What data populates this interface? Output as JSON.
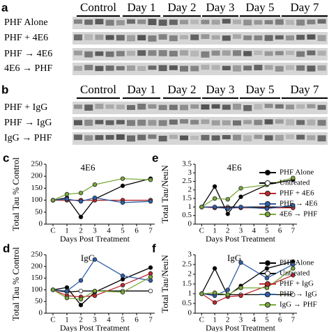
{
  "blots": [
    {
      "label": "a",
      "headers": [
        "Control",
        "Day 1",
        "Day 2",
        "Day 3",
        "Day 5",
        "Day 7"
      ],
      "rows": [
        "PHF Alone",
        "PHF + 4E6",
        "PHF → 4E6",
        "4E6 → PHF"
      ]
    },
    {
      "label": "b",
      "headers": [
        "Control",
        "Day 1",
        "Day 2",
        "Day 3",
        "Day 5",
        "Day 7"
      ],
      "rows": [
        "PHF + IgG",
        "PHF → IgG",
        "IgG → PHF"
      ]
    }
  ],
  "chart_data": [
    {
      "type": "line",
      "label": "c",
      "title": "4E6",
      "y_label": "Total Tau % Control",
      "x_label": "Days Post Treatment",
      "x": [
        0,
        1,
        2,
        3,
        5,
        7
      ],
      "xlim": [
        -0.5,
        7.3
      ],
      "xticks": [
        {
          "value": 0,
          "label": "C"
        },
        1,
        2,
        3,
        4,
        5,
        6,
        7
      ],
      "ylim": [
        0,
        250
      ],
      "yticks": [
        0,
        50,
        100,
        150,
        200,
        250
      ],
      "legend": false,
      "series": [
        {
          "name": "PHF Alone",
          "color": "#000000",
          "line_color": "#000000",
          "values": [
            100,
            110,
            30,
            105,
            160,
            190
          ]
        },
        {
          "name": "Untreated",
          "color": "#ffffff",
          "line_color": "#000000",
          "values": [
            100,
            100,
            100,
            100,
            100,
            100
          ]
        },
        {
          "name": "PHF + 4E6",
          "color": "#c0282d",
          "line_color": "#c0282d",
          "values": [
            100,
            100,
            100,
            100,
            100,
            100
          ]
        },
        {
          "name": "PHF → 4E6",
          "color": "#2e5fa8",
          "line_color": "#2e5fa8",
          "values": [
            100,
            105,
            95,
            110,
            90,
            95
          ]
        },
        {
          "name": "4E6 → PHF",
          "color": "#7aa83a",
          "line_color": "#7aa83a",
          "values": [
            100,
            125,
            130,
            165,
            190,
            185
          ]
        }
      ]
    },
    {
      "type": "line",
      "label": "e",
      "title": "4E6",
      "y_label": "Total Tau/NeuN",
      "x_label": "Days Post Treatment",
      "x": [
        0,
        1,
        2,
        3,
        5,
        7
      ],
      "xlim": [
        -0.5,
        7.3
      ],
      "xticks": [
        {
          "value": 0,
          "label": "C"
        },
        1,
        2,
        3,
        4,
        5,
        6,
        7
      ],
      "ylim": [
        0,
        3.5
      ],
      "yticks": [
        0,
        0.5,
        1,
        1.5,
        2,
        2.5,
        3,
        3.5
      ],
      "legend": true,
      "series": [
        {
          "name": "PHF Alone",
          "color": "#000000",
          "line_color": "#000000",
          "values": [
            1.0,
            2.2,
            0.6,
            1.6,
            2.3,
            2.6
          ]
        },
        {
          "name": "Untreated",
          "color": "#ffffff",
          "line_color": "#000000",
          "values": [
            1,
            1,
            1,
            1,
            1,
            1
          ]
        },
        {
          "name": "PHF + 4E6",
          "color": "#c0282d",
          "line_color": "#c0282d",
          "values": [
            1,
            0.95,
            0.95,
            0.95,
            0.95,
            0.95
          ]
        },
        {
          "name": "PHF → 4E6",
          "color": "#2e5fa8",
          "line_color": "#2e5fa8",
          "values": [
            1,
            1.0,
            0.9,
            1.0,
            0.9,
            1.1
          ]
        },
        {
          "name": "4E6 → PHF",
          "color": "#7aa83a",
          "line_color": "#7aa83a",
          "values": [
            1,
            1.5,
            1.45,
            2.1,
            2.3,
            2.7
          ]
        }
      ]
    },
    {
      "type": "line",
      "label": "d",
      "title": "IgG",
      "y_label": "Total Tau % Control",
      "x_label": "Days Post Treatment",
      "x": [
        0,
        1,
        2,
        3,
        5,
        7
      ],
      "xlim": [
        -0.5,
        7.3
      ],
      "xticks": [
        {
          "value": 0,
          "label": "C"
        },
        1,
        2,
        3,
        4,
        5,
        6,
        7
      ],
      "ylim": [
        0,
        250
      ],
      "yticks": [
        0,
        50,
        100,
        150,
        200,
        250
      ],
      "legend": false,
      "series": [
        {
          "name": "PHF Alone",
          "color": "#000000",
          "line_color": "#000000",
          "values": [
            100,
            110,
            35,
            90,
            145,
            195
          ]
        },
        {
          "name": "Untreated",
          "color": "#ffffff",
          "line_color": "#000000",
          "values": [
            100,
            90,
            95,
            95,
            95,
            95
          ]
        },
        {
          "name": "PHF + IgG",
          "color": "#c0282d",
          "line_color": "#c0282d",
          "values": [
            100,
            75,
            70,
            75,
            120,
            170
          ]
        },
        {
          "name": "PHF → IgG",
          "color": "#2e5fa8",
          "line_color": "#2e5fa8",
          "values": [
            100,
            95,
            140,
            230,
            160,
            140
          ]
        },
        {
          "name": "IgG → PHF",
          "color": "#7aa83a",
          "line_color": "#7aa83a",
          "values": [
            100,
            65,
            60,
            95,
            90,
            155
          ]
        }
      ]
    },
    {
      "type": "line",
      "label": "f",
      "title": "IgG",
      "y_label": "Total Tau/NeuN",
      "x_label": "Days Post Treatment",
      "x": [
        0,
        1,
        2,
        3,
        5,
        7
      ],
      "xlim": [
        -0.5,
        7.3
      ],
      "xticks": [
        {
          "value": 0,
          "label": "C"
        },
        1,
        2,
        3,
        4,
        5,
        6,
        7
      ],
      "ylim": [
        0,
        3
      ],
      "yticks": [
        0,
        0.5,
        1,
        1.5,
        2,
        2.5,
        3
      ],
      "legend": true,
      "series": [
        {
          "name": "PHF Alone",
          "color": "#000000",
          "line_color": "#000000",
          "values": [
            1,
            2.3,
            0.9,
            1.4,
            2.3,
            2.65
          ]
        },
        {
          "name": "Untreated",
          "color": "#ffffff",
          "line_color": "#000000",
          "values": [
            1,
            0.95,
            0.95,
            0.95,
            0.95,
            0.95
          ]
        },
        {
          "name": "PHF + IgG",
          "color": "#c0282d",
          "line_color": "#c0282d",
          "values": [
            1,
            0.55,
            0.85,
            0.9,
            1.4,
            1.95
          ]
        },
        {
          "name": "PHF → IgG",
          "color": "#2e5fa8",
          "line_color": "#2e5fa8",
          "values": [
            1,
            0.9,
            1.2,
            2.6,
            1.8,
            2.5
          ]
        },
        {
          "name": "IgG → PHF",
          "color": "#7aa83a",
          "line_color": "#7aa83a",
          "values": [
            1,
            1.05,
            0.95,
            1.3,
            1.3,
            2.3
          ]
        }
      ]
    }
  ]
}
